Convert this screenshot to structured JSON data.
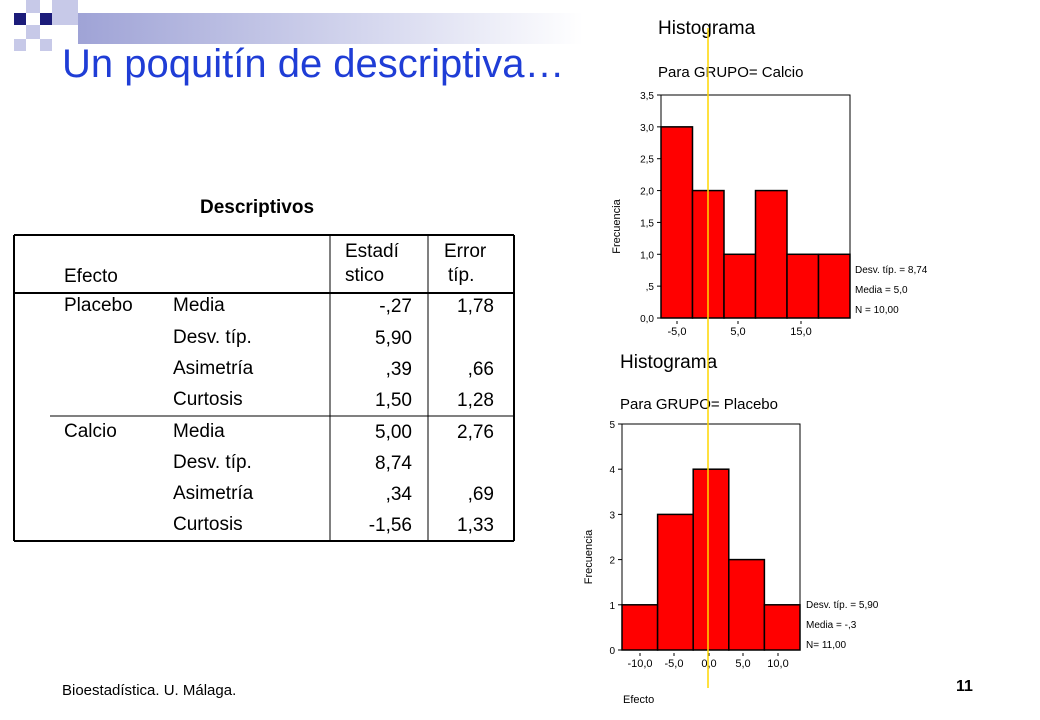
{
  "slide": {
    "title": "Un poquitín de descriptiva…",
    "footer_left": "Bioestadística. U. Málaga.",
    "page_number": "11",
    "colors": {
      "title": "#1f3dd6",
      "bar": "#ff0000",
      "mean_line": "#ffd700",
      "decor_dark": "#1c1c7a",
      "decor_light": "#c7c9e8"
    }
  },
  "table": {
    "title": "Descriptivos",
    "headers": {
      "row_label": "Efecto",
      "col_stat_line1": "Estadí",
      "col_stat_line2": "stico",
      "col_err_line1": "Error",
      "col_err_line2": "típ."
    },
    "groups": [
      {
        "name": "Placebo",
        "rows": [
          {
            "label": "Media",
            "stat": "-,27",
            "err": "1,78"
          },
          {
            "label": "Desv. típ.",
            "stat": "5,90",
            "err": ""
          },
          {
            "label": "Asimetría",
            "stat": ",39",
            "err": ",66"
          },
          {
            "label": "Curtosis",
            "stat": "1,50",
            "err": "1,28"
          }
        ]
      },
      {
        "name": "Calcio",
        "rows": [
          {
            "label": "Media",
            "stat": "5,00",
            "err": "2,76"
          },
          {
            "label": "Desv. típ.",
            "stat": "8,74",
            "err": ""
          },
          {
            "label": "Asimetría",
            "stat": ",34",
            "err": ",69"
          },
          {
            "label": "Curtosis",
            "stat": "-1,56",
            "err": "1,33"
          }
        ]
      }
    ]
  },
  "chart_data": [
    {
      "type": "bar",
      "title": "Histograma",
      "subtitle": "Para GRUPO= Calcio",
      "ylabel": "Frecuencia",
      "xlabel": "",
      "ylim": [
        0,
        3.5
      ],
      "y_ticks": [
        "0,0",
        ",5",
        "1,0",
        "1,5",
        "2,0",
        "2,5",
        "3,0",
        "3,5"
      ],
      "x_tick_labels": [
        "-5,0",
        "5,0",
        "15,0"
      ],
      "values": [
        3,
        2,
        1,
        2,
        1,
        1
      ],
      "stats": [
        "Desv. típ. = 8,74",
        "Media = 5,0",
        "N = 10,00"
      ]
    },
    {
      "type": "bar",
      "title": "Histograma",
      "subtitle": "Para GRUPO= Placebo",
      "ylabel": "Frecuencia",
      "xlabel": "Efecto",
      "ylim": [
        0,
        5
      ],
      "y_ticks": [
        "0",
        "1",
        "2",
        "3",
        "4",
        "5"
      ],
      "x_tick_labels": [
        "-10,0",
        "-5,0",
        "0,0",
        "5,0",
        "10,0"
      ],
      "values": [
        1,
        3,
        4,
        2,
        1
      ],
      "stats": [
        "Desv. típ. = 5,90",
        "Media = -,3",
        "N= 11,00"
      ]
    }
  ]
}
